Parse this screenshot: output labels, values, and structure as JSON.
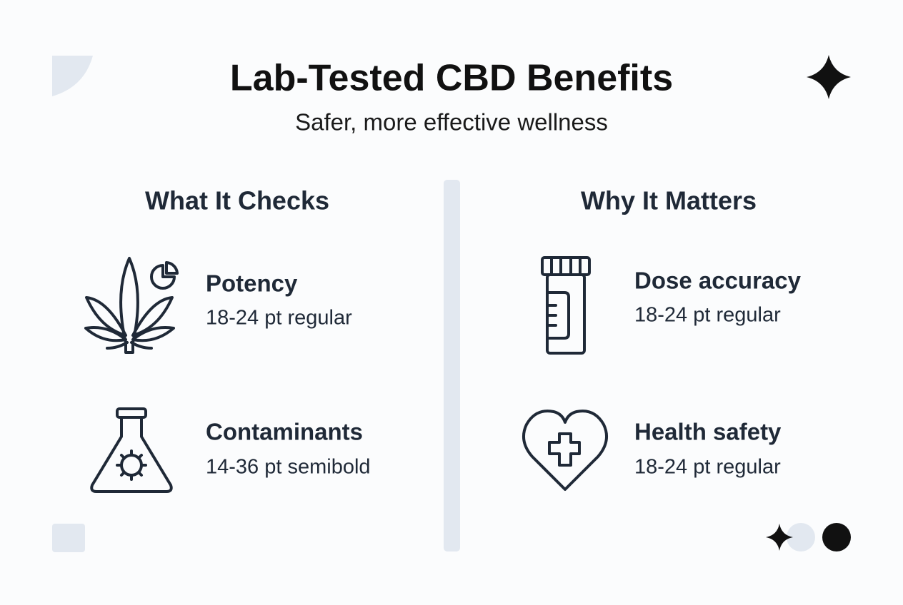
{
  "header": {
    "title": "Lab-Tested CBD Benefits",
    "subtitle": "Safer, more effective wellness"
  },
  "columns": [
    {
      "heading": "What It Checks",
      "items": [
        {
          "title": "Potency",
          "detail": "18-24 pt regular"
        },
        {
          "title": "Contaminants",
          "detail": "14-36 pt semibold"
        }
      ]
    },
    {
      "heading": "Why It Matters",
      "items": [
        {
          "title": "Dose accuracy",
          "detail": "18-24 pt regular"
        },
        {
          "title": "Health safety",
          "detail": "18-24 pt regular"
        }
      ]
    }
  ]
}
